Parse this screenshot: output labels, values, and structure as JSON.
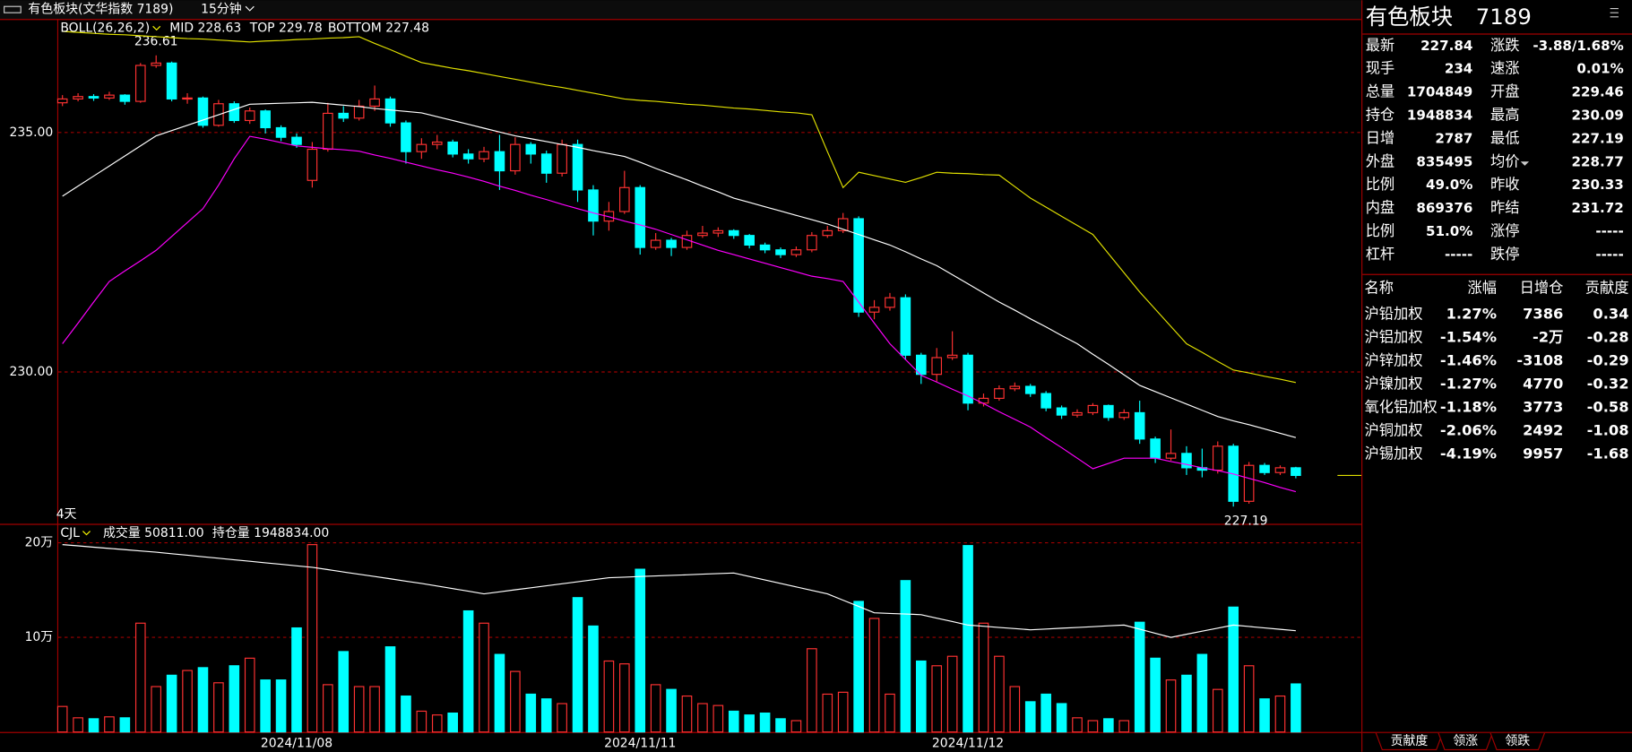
{
  "top_bar": {
    "title": "有色板块(文华指数 7189)",
    "period": "15分钟"
  },
  "chart_data": [
    {
      "type": "candlestick",
      "legend": {
        "name": "BOLL(26,26,2)",
        "items": [
          "MID 228.63",
          "TOP 229.78",
          "BOTTOM 227.48"
        ]
      },
      "open": [
        235.62,
        235.7,
        235.75,
        235.72,
        235.78,
        235.65,
        236.4,
        236.45,
        235.7,
        235.72,
        235.15,
        235.6,
        235.25,
        235.45,
        235.1,
        234.9,
        234.0,
        234.65,
        235.4,
        235.3,
        235.55,
        235.7,
        235.2,
        234.6,
        234.75,
        234.8,
        234.55,
        234.45,
        234.6,
        234.2,
        234.75,
        234.55,
        234.15,
        234.75,
        233.8,
        233.15,
        233.35,
        233.85,
        232.6,
        232.75,
        232.6,
        232.85,
        232.9,
        232.95,
        232.85,
        232.65,
        232.55,
        232.45,
        232.55,
        232.85,
        232.95,
        233.2,
        231.25,
        231.35,
        231.55,
        230.35,
        229.95,
        230.3,
        230.35,
        229.35,
        229.45,
        229.65,
        229.7,
        229.55,
        229.25,
        229.1,
        229.15,
        229.3,
        229.05,
        229.15,
        228.6,
        228.2,
        228.3,
        228.0,
        227.95,
        228.45,
        227.3,
        228.05,
        227.9,
        228.0
      ],
      "high": [
        235.78,
        235.82,
        235.8,
        235.85,
        235.8,
        236.45,
        236.61,
        236.48,
        235.82,
        235.75,
        235.68,
        235.65,
        235.52,
        235.48,
        235.15,
        234.98,
        234.8,
        235.62,
        235.55,
        235.68,
        235.98,
        235.75,
        235.25,
        234.88,
        234.95,
        234.85,
        234.65,
        234.7,
        234.95,
        234.9,
        234.8,
        234.62,
        234.85,
        234.85,
        233.9,
        233.55,
        234.2,
        233.9,
        232.9,
        232.8,
        232.95,
        233.05,
        233.02,
        232.98,
        232.88,
        232.7,
        232.6,
        232.62,
        232.92,
        233.05,
        233.32,
        233.25,
        231.5,
        231.65,
        231.62,
        230.4,
        230.5,
        230.85,
        230.4,
        229.55,
        229.72,
        229.78,
        229.75,
        229.6,
        229.3,
        229.22,
        229.35,
        229.32,
        229.22,
        229.4,
        228.65,
        228.8,
        228.45,
        228.4,
        228.55,
        228.5,
        228.12,
        228.1,
        228.05,
        228.02
      ],
      "low": [
        235.55,
        235.65,
        235.66,
        235.68,
        235.58,
        235.62,
        236.35,
        235.65,
        235.6,
        235.1,
        235.12,
        235.2,
        235.18,
        234.98,
        234.82,
        234.68,
        233.85,
        234.6,
        235.22,
        235.25,
        235.45,
        235.12,
        234.35,
        234.45,
        234.65,
        234.48,
        234.35,
        234.38,
        233.8,
        234.12,
        234.35,
        233.95,
        234.08,
        233.55,
        232.85,
        232.95,
        233.3,
        232.45,
        232.55,
        232.42,
        232.55,
        232.8,
        232.82,
        232.78,
        232.58,
        232.48,
        232.38,
        232.4,
        232.5,
        232.8,
        232.9,
        231.15,
        231.1,
        231.28,
        230.25,
        229.75,
        229.8,
        230.25,
        229.2,
        229.28,
        229.4,
        229.6,
        229.48,
        229.18,
        229.02,
        229.05,
        229.1,
        228.98,
        229.0,
        228.5,
        228.1,
        228.15,
        227.85,
        227.8,
        227.88,
        227.19,
        227.25,
        227.85,
        227.85,
        227.78
      ],
      "close": [
        235.7,
        235.75,
        235.72,
        235.78,
        235.65,
        236.4,
        236.45,
        235.7,
        235.72,
        235.15,
        235.6,
        235.25,
        235.45,
        235.1,
        234.9,
        234.75,
        234.65,
        235.4,
        235.3,
        235.55,
        235.7,
        235.2,
        234.6,
        234.75,
        234.8,
        234.55,
        234.45,
        234.6,
        234.2,
        234.75,
        234.55,
        234.15,
        234.75,
        233.8,
        233.15,
        233.35,
        233.85,
        232.6,
        232.75,
        232.6,
        232.85,
        232.9,
        232.95,
        232.85,
        232.65,
        232.55,
        232.45,
        232.55,
        232.85,
        232.95,
        233.2,
        231.25,
        231.35,
        231.55,
        230.35,
        229.95,
        230.3,
        230.35,
        229.35,
        229.45,
        229.65,
        229.7,
        229.55,
        229.25,
        229.1,
        229.15,
        229.3,
        229.05,
        229.15,
        228.6,
        228.2,
        228.3,
        228.0,
        227.95,
        228.45,
        227.3,
        228.05,
        227.9,
        228.0,
        227.84
      ],
      "up_color": "#ff3232",
      "down_color": "#00ffff",
      "series": [
        {
          "color": "#ffffff",
          "values": [
            233.67,
            233.88,
            234.09,
            234.3,
            234.51,
            234.72,
            234.93,
            235.04,
            235.15,
            235.26,
            235.37,
            235.48,
            235.59,
            235.6,
            235.61,
            235.62,
            235.63,
            235.6,
            235.57,
            235.54,
            235.5,
            235.47,
            235.44,
            235.41,
            235.33,
            235.25,
            235.17,
            235.09,
            235.01,
            234.93,
            234.87,
            234.81,
            234.75,
            234.69,
            234.62,
            234.56,
            234.5,
            234.38,
            234.25,
            234.13,
            234.01,
            233.88,
            233.76,
            233.63,
            233.54,
            233.45,
            233.36,
            233.27,
            233.18,
            233.09,
            232.98,
            232.87,
            232.76,
            232.65,
            232.51,
            232.36,
            232.22,
            232.03,
            231.84,
            231.65,
            231.46,
            231.29,
            231.11,
            230.94,
            230.76,
            230.59,
            230.37,
            230.16,
            229.94,
            229.72,
            229.59,
            229.46,
            229.33,
            229.2,
            229.07,
            228.98,
            228.9,
            228.81,
            228.72,
            228.63
          ]
        },
        {
          "color": "#e0e000",
          "values": [
            237.11,
            237.09,
            237.07,
            237.05,
            237.04,
            237.02,
            237.0,
            236.98,
            236.96,
            236.95,
            236.93,
            236.91,
            236.89,
            236.91,
            236.92,
            236.94,
            236.95,
            236.97,
            236.98,
            237.0,
            236.86,
            236.73,
            236.59,
            236.46,
            236.4,
            236.34,
            236.29,
            236.23,
            236.17,
            236.11,
            236.05,
            235.99,
            235.94,
            235.88,
            235.82,
            235.76,
            235.7,
            235.67,
            235.65,
            235.62,
            235.59,
            235.57,
            235.54,
            235.51,
            235.49,
            235.46,
            235.43,
            235.41,
            235.37,
            234.6,
            233.85,
            234.17,
            234.1,
            234.03,
            233.96,
            234.06,
            234.17,
            234.15,
            234.14,
            234.12,
            234.11,
            233.87,
            233.63,
            233.44,
            233.25,
            233.06,
            232.87,
            232.47,
            232.07,
            231.67,
            231.31,
            230.95,
            230.59,
            230.41,
            230.22,
            230.04,
            229.98,
            229.91,
            229.85,
            229.78
          ]
        },
        {
          "color": "#ff00ff",
          "values": [
            230.59,
            231.02,
            231.46,
            231.89,
            232.11,
            232.32,
            232.54,
            232.83,
            233.12,
            233.41,
            233.9,
            234.45,
            234.92,
            234.86,
            234.79,
            234.72,
            234.69,
            234.66,
            234.64,
            234.61,
            234.53,
            234.46,
            234.38,
            234.3,
            234.22,
            234.15,
            234.07,
            233.98,
            233.88,
            233.79,
            233.69,
            233.6,
            233.5,
            233.41,
            233.32,
            233.24,
            233.15,
            233.07,
            232.98,
            232.87,
            232.76,
            232.65,
            232.54,
            232.45,
            232.36,
            232.27,
            232.18,
            232.09,
            232.0,
            231.95,
            231.89,
            231.46,
            231.02,
            230.59,
            230.26,
            229.93,
            229.79,
            229.64,
            229.5,
            229.34,
            229.17,
            229.01,
            228.85,
            228.63,
            228.42,
            228.2,
            227.98,
            228.09,
            228.2,
            228.2,
            228.2,
            228.13,
            228.07,
            228.0,
            227.94,
            227.87,
            227.78,
            227.69,
            227.59,
            227.5
          ]
        }
      ],
      "ylim": [
        226.83,
        237.37
      ],
      "yticks": [
        {
          "value": 235,
          "label": "235.00"
        },
        {
          "value": 230,
          "label": "230.00"
        }
      ],
      "grid": true,
      "annotation": "4天"
    },
    {
      "type": "bar",
      "legend": {
        "name": "CJL",
        "items": [
          "成交量 50811.00",
          "持仓量 1948834.00"
        ]
      },
      "categories": [
        null,
        null,
        null,
        null,
        null,
        null,
        null,
        null,
        null,
        null,
        null,
        null,
        null,
        null,
        null,
        "2024/11/08",
        null,
        null,
        null,
        null,
        null,
        null,
        null,
        null,
        null,
        null,
        null,
        null,
        null,
        null,
        null,
        null,
        null,
        null,
        null,
        null,
        null,
        "2024/11/11",
        null,
        null,
        null,
        null,
        null,
        null,
        null,
        null,
        null,
        null,
        null,
        null,
        null,
        null,
        null,
        null,
        null,
        null,
        null,
        null,
        "2024/11/12",
        null,
        null,
        null,
        null,
        null,
        null,
        null,
        null,
        null,
        null,
        null,
        null,
        null,
        null,
        null,
        null,
        null,
        null,
        null,
        null,
        null
      ],
      "values": [
        27000,
        15000,
        14000,
        16000,
        15000,
        115000,
        48000,
        60000,
        65000,
        68000,
        52000,
        70000,
        78000,
        55000,
        55000,
        110000,
        198000,
        50000,
        85000,
        48000,
        48000,
        90000,
        38000,
        22000,
        18000,
        20000,
        128000,
        115000,
        82000,
        64000,
        40000,
        35000,
        30000,
        142000,
        112000,
        75000,
        72000,
        172000,
        50000,
        45000,
        38000,
        30000,
        28000,
        22000,
        18000,
        20000,
        14000,
        12000,
        88000,
        40000,
        42000,
        138000,
        120000,
        40000,
        160000,
        75000,
        70000,
        80000,
        197000,
        115000,
        80000,
        48000,
        32000,
        40000,
        30000,
        15000,
        12000,
        14000,
        12000,
        116000,
        78000,
        55000,
        60000,
        82000,
        45000,
        132000,
        70000,
        35000,
        38000,
        50811
      ],
      "series": [
        {
          "color": "#ffffff",
          "values": [
            198000,
            196700,
            195300,
            194000,
            192700,
            191300,
            190000,
            188400,
            186800,
            185200,
            183600,
            182000,
            180400,
            178800,
            177200,
            175600,
            174000,
            171600,
            169100,
            166700,
            164300,
            161900,
            159400,
            157000,
            154300,
            151500,
            148800,
            146000,
            148100,
            150300,
            152400,
            154500,
            156600,
            158800,
            160900,
            163000,
            163600,
            164300,
            164900,
            165500,
            166100,
            166800,
            167400,
            168000,
            164300,
            160700,
            157000,
            153300,
            149700,
            146000,
            139300,
            132700,
            126000,
            125300,
            124700,
            124000,
            120300,
            116700,
            113000,
            111800,
            110500,
            109300,
            108000,
            108800,
            109700,
            110500,
            111300,
            112200,
            113000,
            108700,
            104300,
            100000,
            103300,
            106500,
            109800,
            113000,
            111500,
            110000,
            108500,
            107000
          ]
        }
      ],
      "ylim": [
        0,
        220000
      ],
      "yticks": [
        {
          "value": 200000,
          "label": "20万"
        },
        {
          "value": 100000,
          "label": "10万"
        }
      ],
      "grid": true
    }
  ],
  "quote_panel": {
    "title": "有色板块",
    "code": "7189",
    "rows": [
      [
        {
          "label": "最新",
          "value": "227.84",
          "color": "#00ff00"
        },
        {
          "label": "涨跌",
          "value": "-3.88/1.68%",
          "color": "#00ff00"
        }
      ],
      [
        {
          "label": "现手",
          "value": "234",
          "color": "#ffff00"
        },
        {
          "label": "速涨",
          "value": "0.01%",
          "color": "#ff3232"
        }
      ],
      [
        {
          "label": "总量",
          "value": "1704849",
          "color": "#ffff00"
        },
        {
          "label": "开盘",
          "value": "229.46",
          "color": "#00ff00"
        }
      ],
      [
        {
          "label": "持仓",
          "value": "1948834",
          "color": "#ffff00"
        },
        {
          "label": "最高",
          "value": "230.09",
          "color": "#00ff00"
        }
      ],
      [
        {
          "label": "日增",
          "value": "2787",
          "color": "#ffff00"
        },
        {
          "label": "最低",
          "value": "227.19",
          "color": "#00ff00"
        }
      ],
      [
        {
          "label": "外盘",
          "value": "835495",
          "color": "#ffff00"
        },
        {
          "label": "均价",
          "value": "228.77",
          "color": "#00ff00"
        }
      ],
      [
        {
          "label": "比例",
          "value": "49.0%",
          "color": "#ffff00"
        },
        {
          "label": "昨收",
          "value": "230.33",
          "color": "#ffffff"
        }
      ],
      [
        {
          "label": "内盘",
          "value": "869376",
          "color": "#ffff00"
        },
        {
          "label": "昨结",
          "value": "231.72",
          "color": "#ffffff"
        }
      ],
      [
        {
          "label": "比例",
          "value": "51.0%",
          "color": "#ffff00"
        },
        {
          "label": "涨停",
          "value": "-----",
          "color": "#ff3232"
        }
      ],
      [
        {
          "label": "杠杆",
          "value": "-----",
          "color": "#ffff00"
        },
        {
          "label": "跌停",
          "value": "-----",
          "color": "#00ff00"
        }
      ]
    ]
  },
  "table": {
    "headers": [
      "名称",
      "涨幅",
      "日增仓",
      "贡献度"
    ],
    "rows": [
      {
        "cells": [
          "沪铅加权",
          "1.27%",
          "7386",
          "0.34"
        ],
        "colors": [
          "#ffffff",
          "#ff3232",
          "#ffff00",
          "#ff3232"
        ]
      },
      {
        "cells": [
          "沪铝加权",
          "-1.54%",
          "-2万",
          "-0.28"
        ],
        "colors": [
          "#ffffff",
          "#00ff00",
          "#ffff00",
          "#00ff00"
        ]
      },
      {
        "cells": [
          "沪锌加权",
          "-1.46%",
          "-3108",
          "-0.29"
        ],
        "colors": [
          "#ffffff",
          "#00ff00",
          "#ffff00",
          "#00ff00"
        ]
      },
      {
        "cells": [
          "沪镍加权",
          "-1.27%",
          "4770",
          "-0.32"
        ],
        "colors": [
          "#ffffff",
          "#00ff00",
          "#ffff00",
          "#00ff00"
        ]
      },
      {
        "cells": [
          "氧化铝加权",
          "-1.18%",
          "3773",
          "-0.58"
        ],
        "colors": [
          "#ffffff",
          "#00ff00",
          "#ffff00",
          "#00ff00"
        ]
      },
      {
        "cells": [
          "沪铜加权",
          "-2.06%",
          "2492",
          "-1.08"
        ],
        "colors": [
          "#ffffff",
          "#00ff00",
          "#ffff00",
          "#00ff00"
        ]
      },
      {
        "cells": [
          "沪锡加权",
          "-4.19%",
          "9957",
          "-1.68"
        ],
        "colors": [
          "#ffffff",
          "#00ff00",
          "#ffff00",
          "#00ff00"
        ]
      }
    ]
  },
  "tabs": [
    "贡献度",
    "领涨",
    "领跌"
  ]
}
